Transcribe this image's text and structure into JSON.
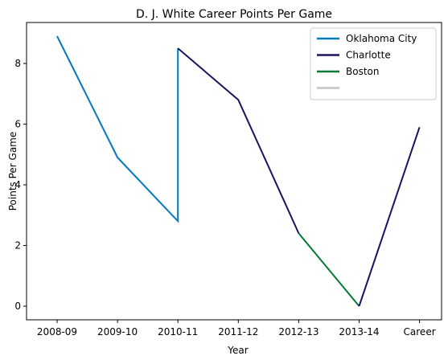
{
  "chart_data": {
    "type": "line",
    "title": "D. J. White Career Points Per Game",
    "xlabel": "Year",
    "ylabel": "Points Per Game",
    "categories": [
      "2008-09",
      "2009-10",
      "2010-11",
      "2011-12",
      "2012-13",
      "2013-14",
      "Career"
    ],
    "ylim": [
      -0.45,
      9.35
    ],
    "yticks": [
      0,
      2,
      4,
      6,
      8
    ],
    "grid": false,
    "legend_position": "top-right",
    "series": [
      {
        "name": "Oklahoma City",
        "color": "#007ac1",
        "points": [
          {
            "x": "2008-09",
            "y": 8.9
          },
          {
            "x": "2009-10",
            "y": 4.9
          },
          {
            "x": "2010-11",
            "y": 2.8
          },
          {
            "x": "2010-11",
            "y": 8.5
          }
        ]
      },
      {
        "name": "Charlotte",
        "color": "#1d1160",
        "points": [
          {
            "x": "2010-11",
            "y": 8.5
          },
          {
            "x": "2011-12",
            "y": 6.8
          },
          {
            "x": "2012-13",
            "y": 2.4
          }
        ]
      },
      {
        "name": "Boston",
        "color": "#007a33",
        "points": [
          {
            "x": "2012-13",
            "y": 2.4
          },
          {
            "x": "2013-14",
            "y": 0
          }
        ]
      },
      {
        "name": "",
        "color": "#1d1160",
        "legend_color": "#c4c4c4",
        "points": [
          {
            "x": "2013-14",
            "y": 0
          },
          {
            "x": "Career",
            "y": 5.9
          }
        ]
      }
    ]
  }
}
